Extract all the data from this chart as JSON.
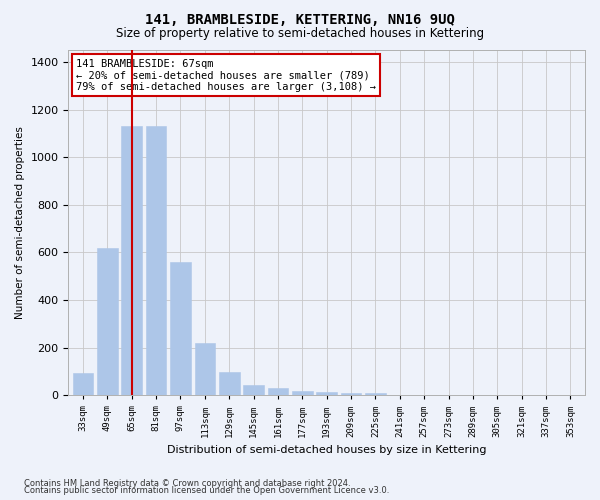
{
  "title": "141, BRAMBLESIDE, KETTERING, NN16 9UQ",
  "subtitle": "Size of property relative to semi-detached houses in Kettering",
  "xlabel": "Distribution of semi-detached houses by size in Kettering",
  "ylabel": "Number of semi-detached properties",
  "footnote1": "Contains HM Land Registry data © Crown copyright and database right 2024.",
  "footnote2": "Contains public sector information licensed under the Open Government Licence v3.0.",
  "annotation_title": "141 BRAMBLESIDE: 67sqm",
  "annotation_line1": "← 20% of semi-detached houses are smaller (789)",
  "annotation_line2": "79% of semi-detached houses are larger (3,108) →",
  "property_size_idx": 2,
  "categories": [
    "33sqm",
    "49sqm",
    "65sqm",
    "81sqm",
    "97sqm",
    "113sqm",
    "129sqm",
    "145sqm",
    "161sqm",
    "177sqm",
    "193sqm",
    "209sqm",
    "225sqm",
    "241sqm",
    "257sqm",
    "273sqm",
    "289sqm",
    "305sqm",
    "321sqm",
    "337sqm",
    "353sqm"
  ],
  "values": [
    95,
    620,
    1130,
    1130,
    560,
    220,
    100,
    45,
    30,
    20,
    15,
    10,
    10,
    0,
    0,
    0,
    0,
    0,
    0,
    0,
    0
  ],
  "bar_color": "#adc6e8",
  "bar_edge_color": "#adc6e8",
  "vline_color": "#cc0000",
  "grid_color": "#c8c8c8",
  "background_color": "#eef2fa",
  "annotation_box_facecolor": "#ffffff",
  "annotation_box_edgecolor": "#cc0000",
  "ylim": [
    0,
    1450
  ],
  "title_fontsize": 10,
  "subtitle_fontsize": 8.5,
  "annotation_fontsize": 7.5,
  "ylabel_fontsize": 7.5,
  "xlabel_fontsize": 8,
  "xtick_fontsize": 6.5,
  "ytick_fontsize": 8,
  "footnote_fontsize": 6
}
